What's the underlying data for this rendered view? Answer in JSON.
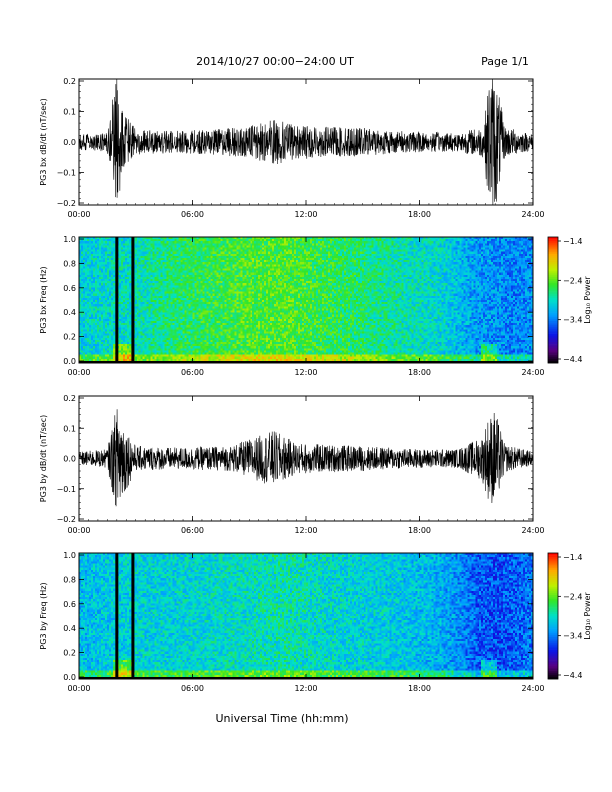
{
  "header": {
    "date_range": "2014/10/27  00:00−24:00 UT",
    "page": "Page 1/1"
  },
  "xlabel": "Universal Time (hh:mm)",
  "x_ticks": [
    "00:00",
    "06:00",
    "12:00",
    "18:00",
    "24:00"
  ],
  "chart_data": [
    {
      "type": "line",
      "id": "bx_ts",
      "ylabel": "PG3 bx dB/dt (nT/sec)",
      "ylim": [
        -0.2,
        0.2
      ],
      "y_ticks": [
        "0.2",
        "0.1",
        "0.0",
        "−0.1",
        "−0.2"
      ],
      "xlim_hours": [
        0,
        24
      ],
      "series": [
        {
          "color": "#000000",
          "envelope_hours": [
            0,
            1.5,
            1.8,
            2.0,
            2.3,
            2.6,
            3.0,
            5.0,
            7.0,
            9.0,
            10.3,
            11.0,
            12.5,
            15.0,
            17.0,
            20.0,
            21.4,
            21.7,
            22.0,
            22.5,
            24.0
          ],
          "envelope_amplitude": [
            0.025,
            0.03,
            0.15,
            0.22,
            0.12,
            0.08,
            0.04,
            0.035,
            0.04,
            0.05,
            0.075,
            0.06,
            0.05,
            0.045,
            0.035,
            0.03,
            0.05,
            0.22,
            0.22,
            0.05,
            0.025
          ]
        }
      ]
    },
    {
      "type": "heatmap",
      "id": "bx_spec",
      "ylabel": "PG3 bx Freq (Hz)",
      "ylim": [
        0.0,
        1.0
      ],
      "y_ticks": [
        "1.0",
        "0.8",
        "0.6",
        "0.4",
        "0.2",
        "0.0"
      ],
      "xlim_hours": [
        0,
        24
      ],
      "colorbar": {
        "label": "Log₁₀ Power",
        "range": [
          -4.4,
          -1.4
        ],
        "ticks": [
          "−1.4",
          "−2.4",
          "−3.4",
          "−4.4"
        ]
      },
      "gaps_hours": [
        2.0,
        2.85
      ],
      "mean_log_power_hours": [
        0,
        3,
        5,
        7,
        9,
        11,
        13,
        15,
        17,
        19,
        20,
        21,
        22,
        23,
        24
      ],
      "mean_log_power": [
        -3.0,
        -2.9,
        -2.7,
        -2.6,
        -2.5,
        -2.5,
        -2.6,
        -2.7,
        -2.85,
        -2.95,
        -3.1,
        -3.25,
        -3.3,
        -3.35,
        -3.3
      ]
    },
    {
      "type": "line",
      "id": "by_ts",
      "ylabel": "PG3 by dB/dt (nT/sec)",
      "ylim": [
        -0.2,
        0.2
      ],
      "y_ticks": [
        "0.2",
        "0.1",
        "0.0",
        "−0.1",
        "−0.2"
      ],
      "xlim_hours": [
        0,
        24
      ],
      "series": [
        {
          "color": "#000000",
          "envelope_hours": [
            0,
            1.5,
            1.8,
            2.1,
            2.5,
            3.0,
            5.0,
            8.0,
            10.3,
            11.5,
            13.0,
            15.0,
            18.0,
            20.0,
            21.3,
            21.6,
            22.0,
            22.5,
            24.0
          ],
          "envelope_amplitude": [
            0.022,
            0.03,
            0.12,
            0.19,
            0.1,
            0.04,
            0.035,
            0.04,
            0.09,
            0.05,
            0.045,
            0.04,
            0.03,
            0.03,
            0.07,
            0.13,
            0.16,
            0.045,
            0.022
          ]
        }
      ]
    },
    {
      "type": "heatmap",
      "id": "by_spec",
      "ylabel": "PG3 by Freq (Hz)",
      "ylim": [
        0.0,
        1.0
      ],
      "y_ticks": [
        "1.0",
        "0.8",
        "0.6",
        "0.4",
        "0.2",
        "0.0"
      ],
      "xlim_hours": [
        0,
        24
      ],
      "colorbar": {
        "label": "Log₁₀ Power",
        "range": [
          -4.4,
          -1.4
        ],
        "ticks": [
          "−1.4",
          "−2.4",
          "−3.4",
          "−4.4"
        ]
      },
      "gaps_hours": [
        2.0,
        2.85
      ],
      "mean_log_power_hours": [
        0,
        3,
        5,
        7,
        9,
        11,
        13,
        15,
        17,
        19,
        20,
        21,
        22,
        23,
        24
      ],
      "mean_log_power": [
        -3.1,
        -3.0,
        -3.0,
        -2.95,
        -2.9,
        -2.85,
        -2.95,
        -3.0,
        -3.05,
        -3.15,
        -3.3,
        -3.5,
        -3.55,
        -3.5,
        -3.4
      ]
    }
  ]
}
